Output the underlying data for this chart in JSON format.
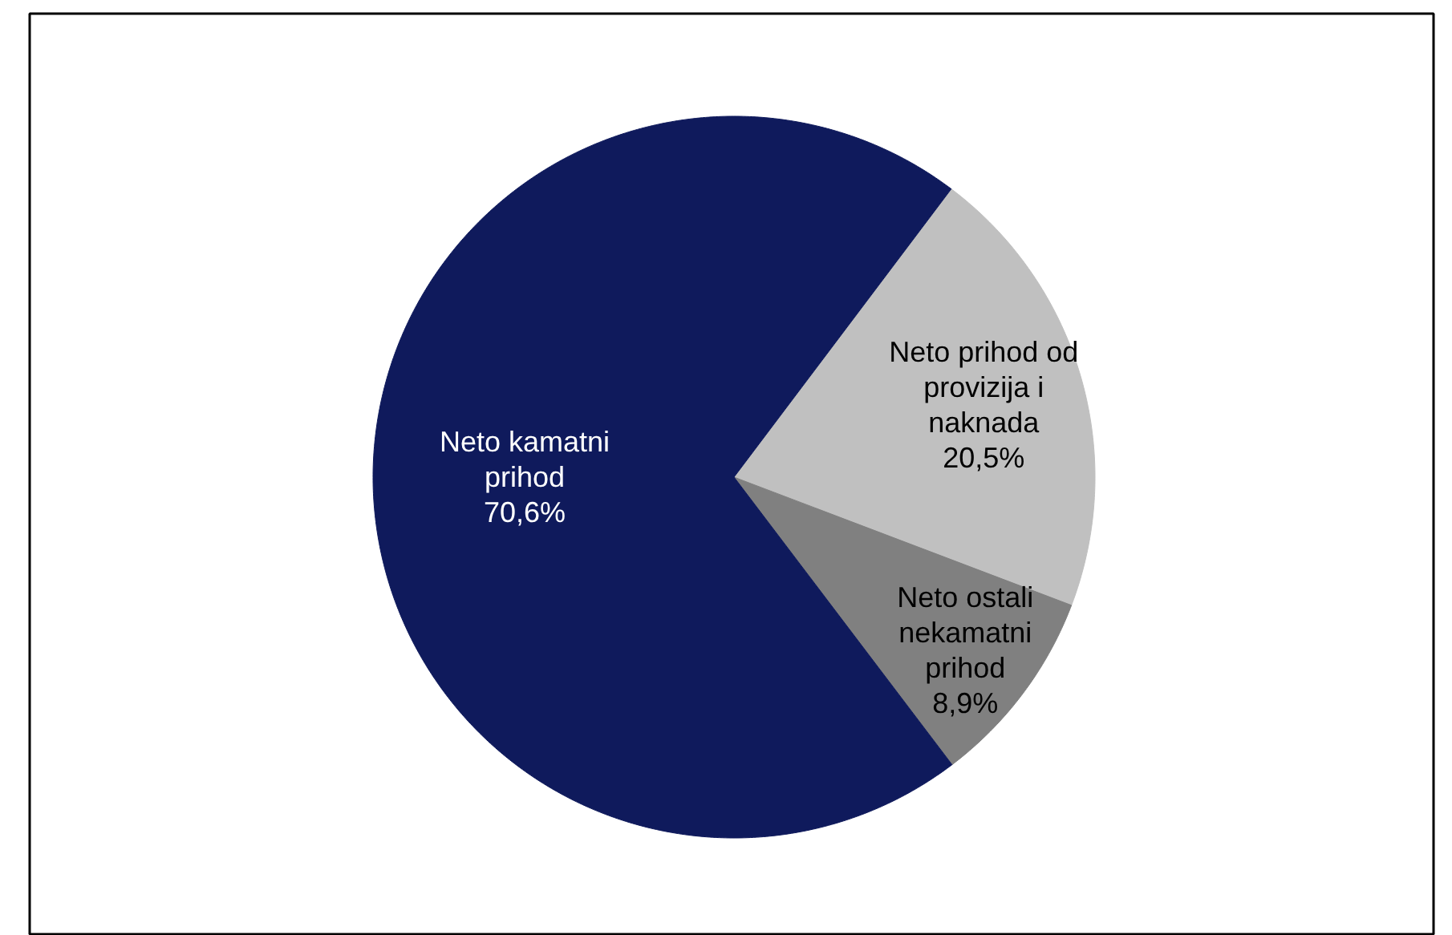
{
  "chart_data": {
    "type": "pie",
    "categories": [
      "Neto prihod od provizija i naknada",
      "Neto ostali nekamatni prihod",
      "Neto kamatni prihod"
    ],
    "values": [
      20.5,
      8.9,
      70.6
    ],
    "colors": [
      "#c0c0c0",
      "#808080",
      "#0f1a5c"
    ],
    "value_labels": [
      "20,5%",
      "8,9%",
      "70,6%"
    ]
  }
}
